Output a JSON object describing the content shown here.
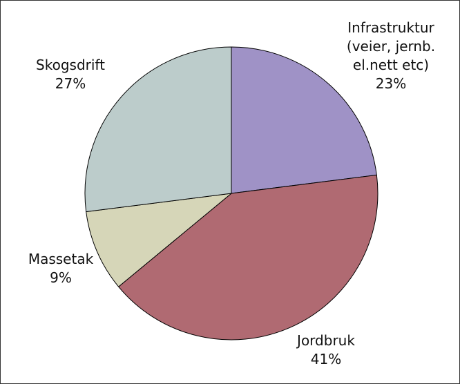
{
  "chart_data": {
    "type": "pie",
    "categories": [
      "Infrastruktur\n(veier, jernb.\nel.nett etc)",
      "Jordbruk",
      "Massetak",
      "Skogsdrift"
    ],
    "values": [
      23,
      41,
      9,
      27
    ],
    "value_labels": [
      "23%",
      "41%",
      "9%",
      "27%"
    ],
    "colors": [
      "#9f92c6",
      "#b06a72",
      "#d6d6b8",
      "#bccccb"
    ]
  }
}
